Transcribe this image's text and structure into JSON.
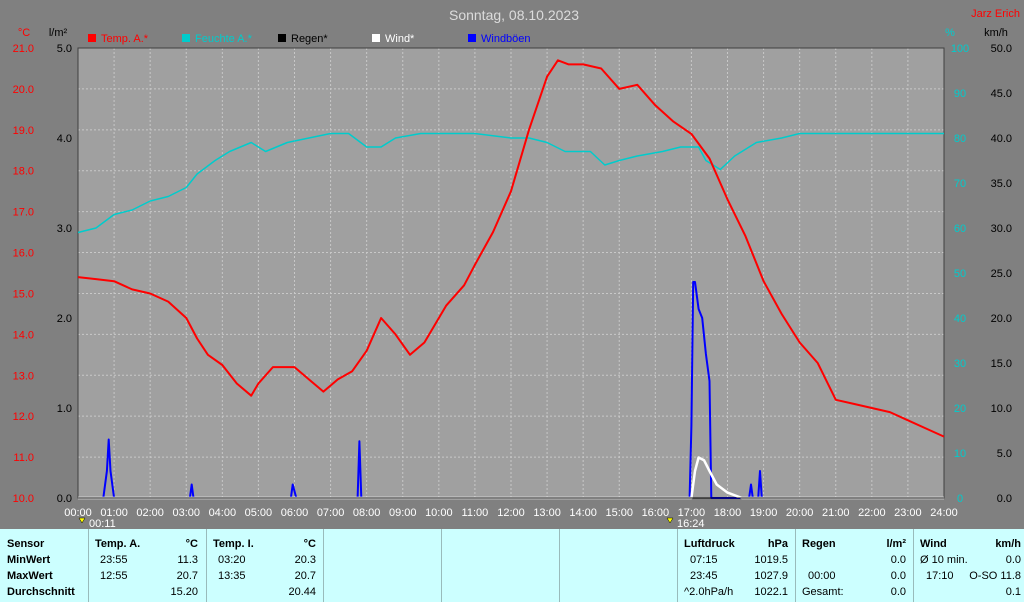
{
  "colors": {
    "temp": "#ff0000",
    "humidity": "#00cccc",
    "rain": "#000000",
    "wind": "#ffffff",
    "gusts": "#0000ff",
    "plot_bg": "#a0a0a0",
    "grid": "#c8c8c8",
    "table_bg": "#ccffff"
  },
  "header": {
    "title": "Sonntag, 08.10.2023",
    "brand": "Jarz Erich"
  },
  "axis_units": {
    "temp": "°C",
    "rain": "l/m²",
    "humidity": "%",
    "wind": "km/h"
  },
  "legend": [
    "Temp. A.*",
    "Feuchte A.*",
    "Regen*",
    "Wind*",
    "Windböen"
  ],
  "markers": {
    "left": "00:11",
    "right": "16:24"
  },
  "chart_data": {
    "type": "line",
    "title": "Sonntag, 08.10.2023",
    "x_ticks": [
      "00:00",
      "01:00",
      "02:00",
      "03:00",
      "04:00",
      "05:00",
      "06:00",
      "07:00",
      "08:00",
      "09:00",
      "10:00",
      "11:00",
      "12:00",
      "13:00",
      "14:00",
      "15:00",
      "16:00",
      "17:00",
      "18:00",
      "19:00",
      "20:00",
      "21:00",
      "22:00",
      "23:00",
      "24:00"
    ],
    "temp_ticks": [
      "10.0",
      "11.0",
      "12.0",
      "13.0",
      "14.0",
      "15.0",
      "16.0",
      "17.0",
      "18.0",
      "19.0",
      "20.0",
      "21.0"
    ],
    "rain_ticks": [
      "0.0",
      "1.0",
      "2.0",
      "3.0",
      "4.0",
      "5.0"
    ],
    "humidity_ticks": [
      "0",
      "10",
      "20",
      "30",
      "40",
      "50",
      "60",
      "70",
      "80",
      "90",
      "100"
    ],
    "wind_ticks": [
      "0.0",
      "5.0",
      "10.0",
      "15.0",
      "20.0",
      "25.0",
      "30.0",
      "35.0",
      "40.0",
      "45.0",
      "50.0"
    ],
    "xlim": [
      0,
      24
    ],
    "ylim_temp": [
      10,
      21
    ],
    "ylim_humidity": [
      0,
      100
    ],
    "ylim_wind": [
      0,
      50
    ],
    "grid": true,
    "legend_position": "top",
    "series": [
      {
        "name": "Temp. A.*",
        "axis": "temp",
        "points": [
          [
            0,
            15.4
          ],
          [
            0.5,
            15.35
          ],
          [
            1,
            15.3
          ],
          [
            1.5,
            15.1
          ],
          [
            2,
            15.0
          ],
          [
            2.5,
            14.8
          ],
          [
            3,
            14.4
          ],
          [
            3.3,
            13.9
          ],
          [
            3.6,
            13.5
          ],
          [
            4,
            13.25
          ],
          [
            4.4,
            12.8
          ],
          [
            4.8,
            12.5
          ],
          [
            5,
            12.8
          ],
          [
            5.4,
            13.2
          ],
          [
            6,
            13.2
          ],
          [
            6.4,
            12.9
          ],
          [
            6.8,
            12.6
          ],
          [
            7.2,
            12.9
          ],
          [
            7.6,
            13.1
          ],
          [
            8,
            13.6
          ],
          [
            8.4,
            14.4
          ],
          [
            8.8,
            14.0
          ],
          [
            9.2,
            13.5
          ],
          [
            9.6,
            13.8
          ],
          [
            10.2,
            14.7
          ],
          [
            10.7,
            15.2
          ],
          [
            11,
            15.7
          ],
          [
            11.5,
            16.5
          ],
          [
            12,
            17.5
          ],
          [
            12.5,
            19.0
          ],
          [
            13,
            20.3
          ],
          [
            13.3,
            20.7
          ],
          [
            13.6,
            20.6
          ],
          [
            14,
            20.6
          ],
          [
            14.5,
            20.5
          ],
          [
            15,
            20.0
          ],
          [
            15.5,
            20.1
          ],
          [
            16,
            19.6
          ],
          [
            16.5,
            19.2
          ],
          [
            17,
            18.9
          ],
          [
            17.5,
            18.3
          ],
          [
            18,
            17.3
          ],
          [
            18.5,
            16.4
          ],
          [
            19,
            15.3
          ],
          [
            19.5,
            14.5
          ],
          [
            20,
            13.8
          ],
          [
            20.5,
            13.3
          ],
          [
            21,
            12.4
          ],
          [
            21.5,
            12.3
          ],
          [
            22,
            12.2
          ],
          [
            22.5,
            12.1
          ],
          [
            23,
            11.9
          ],
          [
            23.5,
            11.7
          ],
          [
            24,
            11.5
          ]
        ]
      },
      {
        "name": "Feuchte A.*",
        "axis": "humidity",
        "points": [
          [
            0,
            59
          ],
          [
            0.5,
            60
          ],
          [
            1,
            63
          ],
          [
            1.5,
            64
          ],
          [
            2,
            66
          ],
          [
            2.5,
            67
          ],
          [
            3,
            69
          ],
          [
            3.3,
            72
          ],
          [
            3.8,
            75
          ],
          [
            4.2,
            77
          ],
          [
            4.8,
            79
          ],
          [
            5.2,
            77
          ],
          [
            5.8,
            79
          ],
          [
            6.4,
            80
          ],
          [
            7,
            81
          ],
          [
            7.5,
            81
          ],
          [
            8,
            78
          ],
          [
            8.4,
            78
          ],
          [
            8.8,
            80
          ],
          [
            9.5,
            81
          ],
          [
            10.5,
            81
          ],
          [
            11,
            81
          ],
          [
            12,
            80
          ],
          [
            12.5,
            80
          ],
          [
            13,
            79
          ],
          [
            13.5,
            77
          ],
          [
            14.2,
            77
          ],
          [
            14.6,
            74
          ],
          [
            15,
            75
          ],
          [
            15.5,
            76
          ],
          [
            16.2,
            77
          ],
          [
            16.7,
            78
          ],
          [
            17.2,
            78
          ],
          [
            17.4,
            75
          ],
          [
            17.8,
            73
          ],
          [
            18.2,
            76
          ],
          [
            18.8,
            79
          ],
          [
            19.5,
            80
          ],
          [
            20,
            81
          ],
          [
            24,
            81
          ]
        ]
      },
      {
        "name": "Wind*",
        "axis": "wind",
        "points": [
          [
            0,
            0
          ],
          [
            17,
            0
          ],
          [
            17.1,
            3
          ],
          [
            17.2,
            4.5
          ],
          [
            17.35,
            4.2
          ],
          [
            17.5,
            3
          ],
          [
            17.7,
            1.5
          ],
          [
            18,
            0.6
          ],
          [
            18.4,
            0
          ],
          [
            24,
            0
          ]
        ]
      },
      {
        "name": "Windböen",
        "axis": "wind",
        "points": [
          [
            0,
            0
          ],
          [
            0.7,
            0
          ],
          [
            0.8,
            3
          ],
          [
            0.85,
            6.5
          ],
          [
            0.9,
            3
          ],
          [
            1.0,
            0
          ],
          [
            3.1,
            0
          ],
          [
            3.15,
            1.5
          ],
          [
            3.2,
            0
          ],
          [
            5.9,
            0
          ],
          [
            5.95,
            1.5
          ],
          [
            6.05,
            0
          ],
          [
            7.75,
            0
          ],
          [
            7.8,
            6.3
          ],
          [
            7.85,
            0
          ],
          [
            16.95,
            0
          ],
          [
            17.0,
            8
          ],
          [
            17.05,
            24
          ],
          [
            17.1,
            24
          ],
          [
            17.2,
            21
          ],
          [
            17.3,
            20
          ],
          [
            17.4,
            16
          ],
          [
            17.5,
            13
          ],
          [
            17.55,
            0
          ],
          [
            18.6,
            0
          ],
          [
            18.65,
            1.5
          ],
          [
            18.7,
            0
          ],
          [
            18.85,
            0
          ],
          [
            18.9,
            3
          ],
          [
            18.95,
            0
          ],
          [
            24,
            0
          ]
        ]
      },
      {
        "name": "Regen*",
        "axis": "rain",
        "points": [
          [
            0,
            0
          ],
          [
            24,
            0
          ]
        ]
      }
    ]
  },
  "table": {
    "sensor": {
      "title": "Sensor",
      "min": "MinWert",
      "max": "MaxWert",
      "avg": "Durchschnitt"
    },
    "temp_a": {
      "title": "Temp. A.",
      "unit": "°C",
      "min_time": "23:55",
      "min_val": "11.3",
      "max_time": "12:55",
      "max_val": "20.7",
      "avg_val": "15.20"
    },
    "temp_i": {
      "title": "Temp. I.",
      "unit": "°C",
      "min_time": "03:20",
      "min_val": "20.3",
      "max_time": "13:35",
      "max_val": "20.7",
      "avg_val": "20.44"
    },
    "pressure": {
      "title": "Luftdruck",
      "unit": "hPa",
      "min_time": "07:15",
      "min_val": "1019.5",
      "max_time": "23:45",
      "max_val": "1027.9",
      "trend": "^2.0hPa/h",
      "avg_val": "1022.1"
    },
    "rain": {
      "title": "Regen",
      "unit": "l/m²",
      "time": "00:00",
      "val1": "0.0",
      "val2": "0.0",
      "total_label": "Gesamt:",
      "total": "0.0"
    },
    "wind": {
      "title": "Wind",
      "unit": "km/h",
      "avg_label": "Ø 10 min.",
      "avg_val": "0.0",
      "max_time": "17:10",
      "max_val": "O-SO 11.8",
      "avg2": "0.1"
    }
  }
}
